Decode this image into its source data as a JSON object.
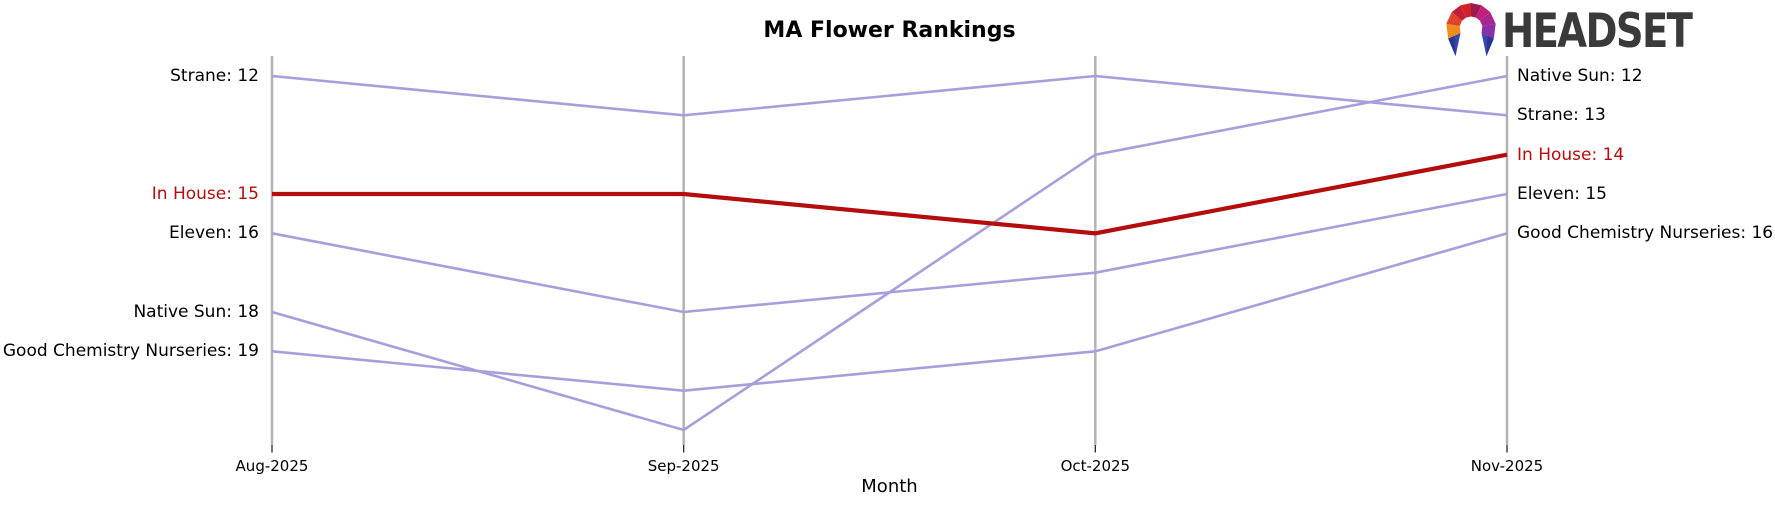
{
  "title": "MA Flower Rankings",
  "logo": {
    "text": "HEADSET"
  },
  "axis": {
    "xlabel": "Month",
    "categories": [
      "Aug-2025",
      "Sep-2025",
      "Oct-2025",
      "Nov-2025"
    ]
  },
  "colors": {
    "highlight_line": "#b30d0d",
    "normal_line": "#a79fdc",
    "axis_line": "#b3b3b3",
    "tick_mark": "#262626",
    "logo_text": "#3a3a3a"
  },
  "chart_data": {
    "type": "line",
    "subtype": "bump-ranking",
    "title": "MA Flower Rankings",
    "xlabel": "Month",
    "x": [
      "Aug-2025",
      "Sep-2025",
      "Oct-2025",
      "Nov-2025"
    ],
    "y_is_rank": true,
    "y_inverted": true,
    "rank_range": [
      12,
      21
    ],
    "legend_position": "edge-labels",
    "grid": "vertical-axes-only",
    "series": [
      {
        "name": "Strane",
        "values": [
          12,
          13,
          12,
          13
        ],
        "highlight": false,
        "left_label": "Strane: 12",
        "right_label": "Strane: 13"
      },
      {
        "name": "Eleven",
        "values": [
          16,
          18,
          17,
          15
        ],
        "highlight": false,
        "left_label": "Eleven: 16",
        "right_label": "Eleven: 15"
      },
      {
        "name": "Native Sun",
        "values": [
          18,
          21,
          14,
          12
        ],
        "highlight": false,
        "left_label": "Native Sun: 18",
        "right_label": "Native Sun: 12"
      },
      {
        "name": "Good Chemistry Nurseries",
        "values": [
          19,
          20,
          19,
          16
        ],
        "highlight": false,
        "left_label": "Good Chemistry Nurseries: 19",
        "right_label": "Good Chemistry Nurseries: 16"
      },
      {
        "name": "In House",
        "values": [
          15,
          15,
          16,
          14
        ],
        "highlight": true,
        "left_label": "In House: 15",
        "right_label": "In House: 14"
      }
    ]
  }
}
